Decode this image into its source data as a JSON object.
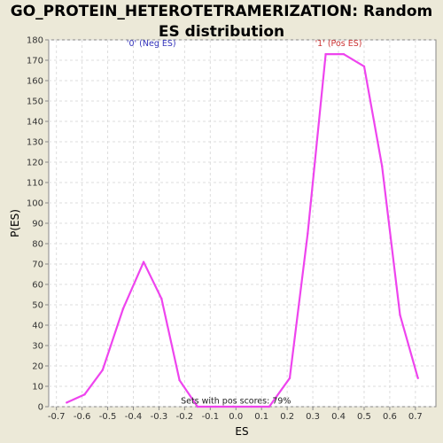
{
  "chart_data": {
    "type": "line",
    "title": "GO_PROTEIN_HETEROTETRAMERIZATION: Random ES distribution",
    "xlabel": "ES",
    "ylabel": "P(ES)",
    "xlim": [
      -0.73,
      0.78
    ],
    "ylim": [
      0,
      180
    ],
    "x_ticks": [
      "-0.7",
      "-0.6",
      "-0.5",
      "-0.4",
      "-0.3",
      "-0.2",
      "-0.1",
      "0.0",
      "0.1",
      "0.2",
      "0.3",
      "0.4",
      "0.5",
      "0.6",
      "0.7"
    ],
    "y_ticks": [
      "0",
      "10",
      "20",
      "30",
      "40",
      "50",
      "60",
      "70",
      "80",
      "90",
      "100",
      "110",
      "120",
      "130",
      "140",
      "150",
      "160",
      "170",
      "180"
    ],
    "grid": true,
    "series": [
      {
        "color": "#ee44ee",
        "x": [
          -0.66,
          -0.59,
          -0.52,
          -0.44,
          -0.36,
          -0.29,
          -0.22,
          -0.15,
          -0.08,
          -0.01,
          0.06,
          0.13,
          0.21,
          0.28,
          0.35,
          0.42,
          0.5,
          0.57,
          0.64,
          0.71
        ],
        "y": [
          2,
          6,
          18,
          48,
          71,
          53,
          13,
          0,
          0,
          0,
          0,
          0,
          14,
          85,
          173,
          173,
          167,
          118,
          45,
          14
        ]
      }
    ],
    "annotations": [
      {
        "text": "'0' (Neg ES)",
        "x": -0.33,
        "y": 177,
        "color": "#3333bb"
      },
      {
        "text": "'1' (Pos ES)",
        "x": 0.4,
        "y": 177,
        "color": "#cc3333"
      },
      {
        "text": "Sets with pos scores: 79%",
        "x": 0.0,
        "y": 1.5,
        "color": "#222222"
      }
    ],
    "colors": {
      "plot_bg": "#ffffff",
      "grid": "#dddddd",
      "axis": "#888888"
    }
  }
}
